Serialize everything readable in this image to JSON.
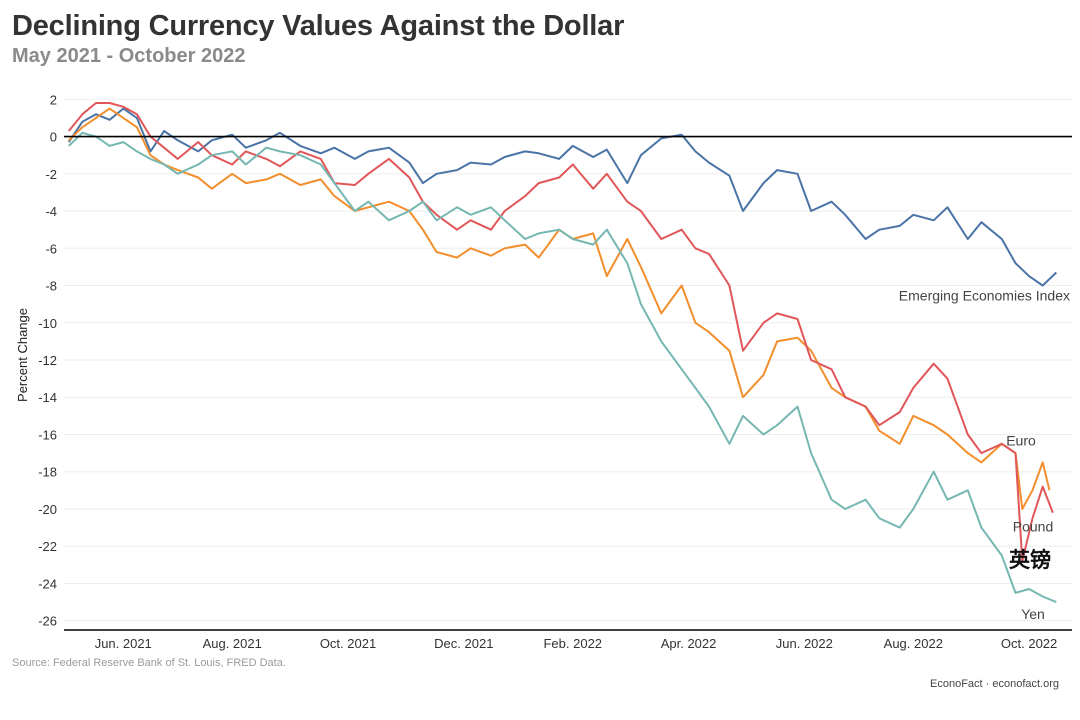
{
  "header": {
    "title": "Declining Currency Values Against the Dollar",
    "subtitle": "May 2021 - October 2022"
  },
  "footer": {
    "source": "Source: Federal Reserve Bank of St. Louis, FRED Data.",
    "credit": "EconoFact · econofact.org"
  },
  "chart_data": {
    "type": "line",
    "title": "Declining Currency Values Against the Dollar",
    "subtitle": "May 2021 - October 2022",
    "xlabel": "",
    "ylabel": "Percent Change",
    "ylim": [
      -26.5,
      2.5
    ],
    "xlim": [
      2021.333,
      2022.813
    ],
    "yticks": [
      2,
      0,
      -2,
      -4,
      -6,
      -8,
      -10,
      -12,
      -14,
      -16,
      -18,
      -20,
      -22,
      -24,
      -26
    ],
    "xticks": [
      {
        "label": "Jun. 2021",
        "x": 2021.42
      },
      {
        "label": "Aug. 2021",
        "x": 2021.58
      },
      {
        "label": "Oct. 2021",
        "x": 2021.75
      },
      {
        "label": "Dec. 2021",
        "x": 2021.92
      },
      {
        "label": "Feb. 2022",
        "x": 2022.08
      },
      {
        "label": "Apr. 2022",
        "x": 2022.25
      },
      {
        "label": "Jun. 2022",
        "x": 2022.42
      },
      {
        "label": "Aug. 2022",
        "x": 2022.58
      },
      {
        "label": "Oct. 2022",
        "x": 2022.75
      }
    ],
    "zero_line": 0,
    "grid": true,
    "extra_annotation": "英镑",
    "series": [
      {
        "name": "Emerging Economies Index",
        "label": "Emerging Economies Index",
        "color": "#4a73a6",
        "x": [
          2021.34,
          2021.36,
          2021.38,
          2021.4,
          2021.42,
          2021.44,
          2021.46,
          2021.48,
          2021.5,
          2021.53,
          2021.55,
          2021.58,
          2021.6,
          2021.63,
          2021.65,
          2021.68,
          2021.71,
          2021.73,
          2021.76,
          2021.78,
          2021.81,
          2021.84,
          2021.86,
          2021.88,
          2021.91,
          2021.93,
          2021.96,
          2021.98,
          2022.01,
          2022.03,
          2022.06,
          2022.08,
          2022.11,
          2022.13,
          2022.16,
          2022.18,
          2022.21,
          2022.24,
          2022.26,
          2022.28,
          2022.31,
          2022.33,
          2022.36,
          2022.38,
          2022.41,
          2022.43,
          2022.46,
          2022.48,
          2022.51,
          2022.53,
          2022.56,
          2022.58,
          2022.61,
          2022.63,
          2022.66,
          2022.68,
          2022.71,
          2022.73,
          2022.75,
          2022.77,
          2022.79
        ],
        "y": [
          -0.3,
          0.8,
          1.2,
          0.9,
          1.5,
          1.0,
          -0.8,
          0.3,
          -0.2,
          -0.8,
          -0.2,
          0.1,
          -0.6,
          -0.2,
          0.2,
          -0.5,
          -0.9,
          -0.6,
          -1.2,
          -0.8,
          -0.6,
          -1.4,
          -2.5,
          -2.0,
          -1.8,
          -1.4,
          -1.5,
          -1.1,
          -0.8,
          -0.9,
          -1.2,
          -0.5,
          -1.1,
          -0.7,
          -2.5,
          -1.0,
          -0.1,
          0.1,
          -0.8,
          -1.4,
          -2.1,
          -4.0,
          -2.5,
          -1.8,
          -2.0,
          -4.0,
          -3.5,
          -4.2,
          -5.5,
          -5.0,
          -4.8,
          -4.2,
          -4.5,
          -3.8,
          -5.5,
          -4.6,
          -5.5,
          -6.8,
          -7.5,
          -8.0,
          -7.3
        ]
      },
      {
        "name": "Euro",
        "label": "Euro",
        "color": "#f28e2b",
        "x": [
          2021.34,
          2021.36,
          2021.38,
          2021.4,
          2021.42,
          2021.44,
          2021.46,
          2021.48,
          2021.5,
          2021.53,
          2021.55,
          2021.58,
          2021.6,
          2021.63,
          2021.65,
          2021.68,
          2021.71,
          2021.73,
          2021.76,
          2021.78,
          2021.81,
          2021.84,
          2021.86,
          2021.88,
          2021.91,
          2021.93,
          2021.96,
          2021.98,
          2022.01,
          2022.03,
          2022.06,
          2022.08,
          2022.11,
          2022.13,
          2022.16,
          2022.18,
          2022.21,
          2022.24,
          2022.26,
          2022.28,
          2022.31,
          2022.33,
          2022.36,
          2022.38,
          2022.41,
          2022.43,
          2022.46,
          2022.48,
          2022.51,
          2022.53,
          2022.56,
          2022.58,
          2022.61,
          2022.63,
          2022.66,
          2022.68,
          2022.71,
          2022.73,
          2022.74,
          2022.755,
          2022.77,
          2022.78
        ],
        "y": [
          -0.2,
          0.5,
          1.0,
          1.5,
          1.0,
          0.5,
          -1.0,
          -1.5,
          -1.8,
          -2.2,
          -2.8,
          -2.0,
          -2.5,
          -2.3,
          -2.0,
          -2.6,
          -2.3,
          -3.2,
          -4.0,
          -3.8,
          -3.5,
          -4.0,
          -5.0,
          -6.2,
          -6.5,
          -6.0,
          -6.4,
          -6.0,
          -5.8,
          -6.5,
          -5.0,
          -5.5,
          -5.2,
          -7.5,
          -5.5,
          -7.0,
          -9.5,
          -8.0,
          -10.0,
          -10.5,
          -11.5,
          -14.0,
          -12.8,
          -11.0,
          -10.8,
          -11.5,
          -13.5,
          -14.0,
          -14.5,
          -15.8,
          -16.5,
          -15.0,
          -15.5,
          -16.0,
          -17.0,
          -17.5,
          -16.5,
          -17.0,
          -20.0,
          -19.0,
          -17.5,
          -19.0
        ]
      },
      {
        "name": "Pound",
        "label": "Pound",
        "color": "#e15759",
        "x": [
          2021.34,
          2021.36,
          2021.38,
          2021.4,
          2021.42,
          2021.44,
          2021.46,
          2021.48,
          2021.5,
          2021.53,
          2021.55,
          2021.58,
          2021.6,
          2021.63,
          2021.65,
          2021.68,
          2021.71,
          2021.73,
          2021.76,
          2021.78,
          2021.81,
          2021.84,
          2021.86,
          2021.88,
          2021.91,
          2021.93,
          2021.96,
          2021.98,
          2022.01,
          2022.03,
          2022.06,
          2022.08,
          2022.11,
          2022.13,
          2022.16,
          2022.18,
          2022.21,
          2022.24,
          2022.26,
          2022.28,
          2022.31,
          2022.33,
          2022.36,
          2022.38,
          2022.41,
          2022.43,
          2022.46,
          2022.48,
          2022.51,
          2022.53,
          2022.56,
          2022.58,
          2022.61,
          2022.63,
          2022.66,
          2022.68,
          2022.71,
          2022.73,
          2022.74,
          2022.755,
          2022.77,
          2022.785
        ],
        "y": [
          0.3,
          1.2,
          1.8,
          1.8,
          1.6,
          1.2,
          0.0,
          -0.6,
          -1.2,
          -0.3,
          -1.0,
          -1.5,
          -0.8,
          -1.2,
          -1.6,
          -0.8,
          -1.2,
          -2.5,
          -2.6,
          -2.0,
          -1.2,
          -2.2,
          -3.5,
          -4.2,
          -5.0,
          -4.5,
          -5.0,
          -4.0,
          -3.2,
          -2.5,
          -2.2,
          -1.5,
          -2.8,
          -2.0,
          -3.5,
          -4.0,
          -5.5,
          -5.0,
          -6.0,
          -6.3,
          -8.0,
          -11.5,
          -10.0,
          -9.5,
          -9.8,
          -12.0,
          -12.5,
          -14.0,
          -14.5,
          -15.5,
          -14.8,
          -13.5,
          -12.2,
          -13.0,
          -16.0,
          -17.0,
          -16.5,
          -17.0,
          -22.8,
          -20.5,
          -18.8,
          -20.2
        ]
      },
      {
        "name": "Yen",
        "label": "Yen",
        "color": "#76b7b2",
        "x": [
          2021.34,
          2021.36,
          2021.38,
          2021.4,
          2021.42,
          2021.44,
          2021.46,
          2021.48,
          2021.5,
          2021.53,
          2021.55,
          2021.58,
          2021.6,
          2021.63,
          2021.65,
          2021.68,
          2021.71,
          2021.73,
          2021.76,
          2021.78,
          2021.81,
          2021.84,
          2021.86,
          2021.88,
          2021.91,
          2021.93,
          2021.96,
          2021.98,
          2022.01,
          2022.03,
          2022.06,
          2022.08,
          2022.11,
          2022.13,
          2022.16,
          2022.18,
          2022.21,
          2022.24,
          2022.26,
          2022.28,
          2022.31,
          2022.33,
          2022.36,
          2022.38,
          2022.41,
          2022.43,
          2022.46,
          2022.48,
          2022.51,
          2022.53,
          2022.56,
          2022.58,
          2022.61,
          2022.63,
          2022.66,
          2022.68,
          2022.71,
          2022.73,
          2022.75,
          2022.77,
          2022.79
        ],
        "y": [
          -0.5,
          0.2,
          0.0,
          -0.5,
          -0.3,
          -0.8,
          -1.2,
          -1.5,
          -2.0,
          -1.5,
          -1.0,
          -0.8,
          -1.5,
          -0.6,
          -0.8,
          -1.0,
          -1.5,
          -2.5,
          -4.0,
          -3.5,
          -4.5,
          -4.0,
          -3.5,
          -4.5,
          -3.8,
          -4.2,
          -3.8,
          -4.5,
          -5.5,
          -5.2,
          -5.0,
          -5.5,
          -5.8,
          -5.0,
          -6.8,
          -9.0,
          -11.0,
          -12.5,
          -13.5,
          -14.5,
          -16.5,
          -15.0,
          -16.0,
          -15.5,
          -14.5,
          -17.0,
          -19.5,
          -20.0,
          -19.5,
          -20.5,
          -21.0,
          -20.0,
          -18.0,
          -19.5,
          -19.0,
          -21.0,
          -22.5,
          -24.5,
          -24.3,
          -24.7,
          -25.0
        ]
      }
    ]
  }
}
